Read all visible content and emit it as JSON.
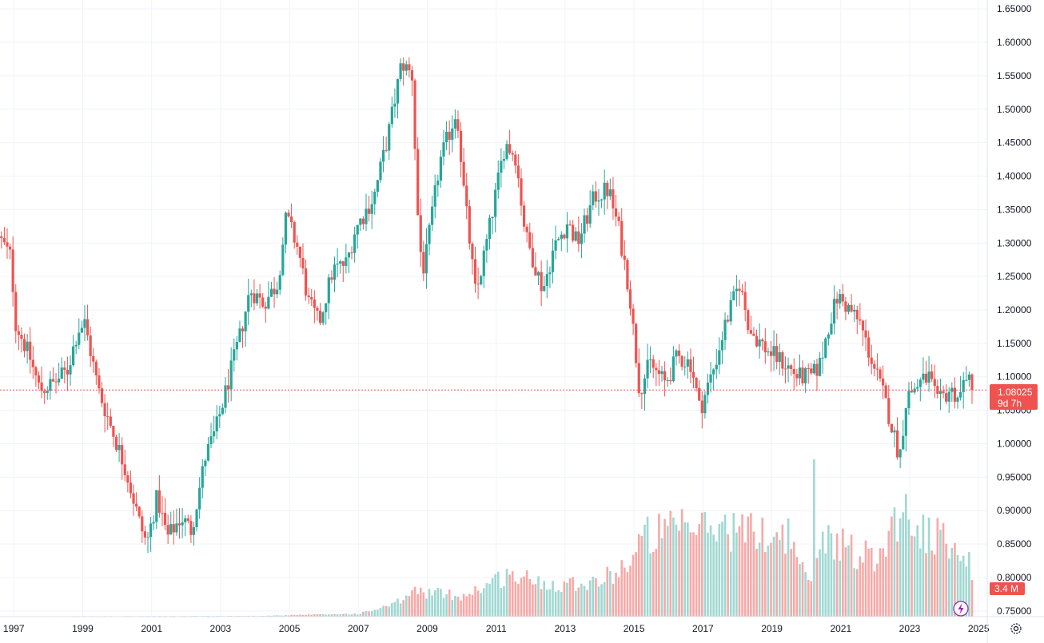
{
  "chart_data": {
    "type": "candlestick",
    "interval": "monthly",
    "x_ticks": [
      "1997",
      "1999",
      "2001",
      "2003",
      "2005",
      "2007",
      "2009",
      "2011",
      "2013",
      "2015",
      "2017",
      "2019",
      "2021",
      "2023",
      "2025"
    ],
    "y_ticks": [
      "1.65000",
      "1.60000",
      "1.55000",
      "1.50000",
      "1.45000",
      "1.40000",
      "1.35000",
      "1.30000",
      "1.25000",
      "1.20000",
      "1.15000",
      "1.10000",
      "1.05000",
      "1.00000",
      "0.95000",
      "0.90000",
      "0.85000",
      "0.80000",
      "0.75000"
    ],
    "ylim": [
      0.745,
      1.655
    ],
    "xlim": [
      1996.6,
      2025.25
    ],
    "grid": true,
    "colors": {
      "up": "#26a69a",
      "down": "#ef5350",
      "up_volume": "#9fd8d2",
      "down_volume": "#f7a9a7",
      "price_line": "#ef5350",
      "grid": "#f0f3fa"
    },
    "price_anchors": [
      [
        1996.6,
        1.31
      ],
      [
        1996.95,
        1.28
      ],
      [
        1997.1,
        1.18
      ],
      [
        1997.5,
        1.13
      ],
      [
        1997.8,
        1.08
      ],
      [
        1998.2,
        1.09
      ],
      [
        1998.6,
        1.11
      ],
      [
        1998.9,
        1.17
      ],
      [
        1999.1,
        1.18
      ],
      [
        1999.5,
        1.08
      ],
      [
        1999.9,
        1.02
      ],
      [
        2000.3,
        0.96
      ],
      [
        2000.7,
        0.88
      ],
      [
        2000.9,
        0.85
      ],
      [
        2001.2,
        0.92
      ],
      [
        2001.5,
        0.86
      ],
      [
        2001.9,
        0.89
      ],
      [
        2002.2,
        0.87
      ],
      [
        2002.6,
        0.98
      ],
      [
        2002.9,
        1.02
      ],
      [
        2003.3,
        1.1
      ],
      [
        2003.6,
        1.16
      ],
      [
        2003.9,
        1.23
      ],
      [
        2004.3,
        1.21
      ],
      [
        2004.7,
        1.24
      ],
      [
        2004.95,
        1.34
      ],
      [
        2005.3,
        1.29
      ],
      [
        2005.6,
        1.21
      ],
      [
        2005.9,
        1.18
      ],
      [
        2006.3,
        1.26
      ],
      [
        2006.7,
        1.27
      ],
      [
        2006.95,
        1.32
      ],
      [
        2007.5,
        1.37
      ],
      [
        2007.9,
        1.46
      ],
      [
        2008.3,
        1.57
      ],
      [
        2008.6,
        1.55
      ],
      [
        2008.8,
        1.3
      ],
      [
        2008.95,
        1.26
      ],
      [
        2009.4,
        1.42
      ],
      [
        2009.9,
        1.5
      ],
      [
        2010.1,
        1.38
      ],
      [
        2010.45,
        1.22
      ],
      [
        2010.8,
        1.31
      ],
      [
        2011.3,
        1.45
      ],
      [
        2011.6,
        1.43
      ],
      [
        2011.9,
        1.31
      ],
      [
        2012.4,
        1.23
      ],
      [
        2012.7,
        1.29
      ],
      [
        2013.1,
        1.33
      ],
      [
        2013.4,
        1.3
      ],
      [
        2013.9,
        1.37
      ],
      [
        2014.3,
        1.38
      ],
      [
        2014.6,
        1.32
      ],
      [
        2014.9,
        1.23
      ],
      [
        2015.2,
        1.08
      ],
      [
        2015.5,
        1.12
      ],
      [
        2015.95,
        1.09
      ],
      [
        2016.3,
        1.13
      ],
      [
        2016.7,
        1.12
      ],
      [
        2016.95,
        1.05
      ],
      [
        2017.4,
        1.12
      ],
      [
        2017.7,
        1.18
      ],
      [
        2018.1,
        1.24
      ],
      [
        2018.4,
        1.17
      ],
      [
        2018.9,
        1.14
      ],
      [
        2019.4,
        1.12
      ],
      [
        2019.8,
        1.1
      ],
      [
        2020.2,
        1.1
      ],
      [
        2020.45,
        1.12
      ],
      [
        2020.7,
        1.18
      ],
      [
        2020.95,
        1.22
      ],
      [
        2021.3,
        1.2
      ],
      [
        2021.6,
        1.18
      ],
      [
        2021.9,
        1.13
      ],
      [
        2022.3,
        1.07
      ],
      [
        2022.55,
        1.02
      ],
      [
        2022.75,
        0.98
      ],
      [
        2022.95,
        1.07
      ],
      [
        2023.3,
        1.09
      ],
      [
        2023.6,
        1.1
      ],
      [
        2023.85,
        1.06
      ],
      [
        2024.2,
        1.08
      ],
      [
        2024.5,
        1.07
      ],
      [
        2024.7,
        1.11
      ],
      [
        2024.8,
        1.08025
      ]
    ],
    "volume_anchors": [
      [
        1996.6,
        0.002
      ],
      [
        2004.0,
        0.005
      ],
      [
        2007.0,
        0.02
      ],
      [
        2008.0,
        0.08
      ],
      [
        2008.6,
        0.17
      ],
      [
        2010.0,
        0.14
      ],
      [
        2011.3,
        0.28
      ],
      [
        2012.5,
        0.22
      ],
      [
        2014.0,
        0.24
      ],
      [
        2014.9,
        0.38
      ],
      [
        2015.3,
        0.55
      ],
      [
        2016.5,
        0.58
      ],
      [
        2017.5,
        0.6
      ],
      [
        2018.5,
        0.56
      ],
      [
        2019.5,
        0.55
      ],
      [
        2020.0,
        0.2
      ],
      [
        2020.5,
        0.55
      ],
      [
        2021.5,
        0.42
      ],
      [
        2022.0,
        0.4
      ],
      [
        2022.7,
        0.72
      ],
      [
        2023.5,
        0.55
      ],
      [
        2024.5,
        0.45
      ],
      [
        2024.8,
        0.3
      ]
    ],
    "volume_spikes": [
      [
        2020.17,
        1.0
      ]
    ],
    "last_price": 1.08025,
    "last_price_label": "1.08025",
    "countdown": "9d 7h",
    "volume_label": "3.4 M"
  }
}
